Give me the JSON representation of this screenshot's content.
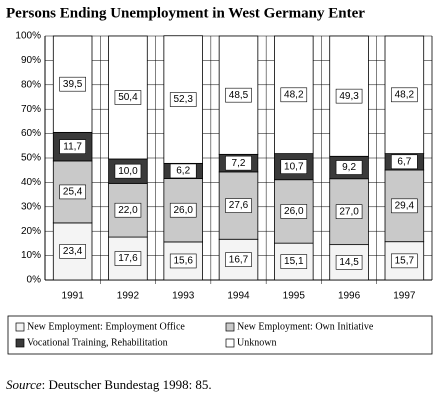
{
  "chart_data": {
    "type": "stacked-bar",
    "title": "Persons Ending Unemployment in West Germany Enter",
    "categories": [
      "1991",
      "1992",
      "1993",
      "1994",
      "1995",
      "1996",
      "1997"
    ],
    "series": [
      {
        "name": "New Employment: Employment Office",
        "color": "#f4f4f4",
        "values": [
          23.4,
          17.6,
          15.6,
          16.7,
          15.1,
          14.5,
          15.7
        ],
        "value_labels": [
          "23,4",
          "17,6",
          "15,6",
          "16,7",
          "15,1",
          "14,5",
          "15,7"
        ]
      },
      {
        "name": "New Employment: Own Initiative",
        "color": "#c9c9c9",
        "values": [
          25.4,
          22.0,
          26.0,
          27.6,
          26.0,
          27.0,
          29.4
        ],
        "value_labels": [
          "25,4",
          "22,0",
          "26,0",
          "27,6",
          "26,0",
          "27,0",
          "29,4"
        ]
      },
      {
        "name": "Vocational Training, Rehabilitation",
        "color": "#3a3a3a",
        "values": [
          11.7,
          10.0,
          6.2,
          7.2,
          10.7,
          9.2,
          6.7
        ],
        "value_labels": [
          "11,7",
          "10,0",
          "6,2",
          "7,2",
          "10,7",
          "9,2",
          "6,7"
        ]
      },
      {
        "name": "Unknown",
        "color": "#ffffff",
        "values": [
          39.5,
          50.4,
          52.3,
          48.5,
          48.2,
          49.3,
          48.2
        ],
        "value_labels": [
          "39,5",
          "50,4",
          "52,3",
          "48,5",
          "48,2",
          "49,3",
          "48,2"
        ]
      }
    ],
    "ylim": [
      0,
      100
    ],
    "yticks": [
      {
        "value": 0,
        "label": "0%"
      },
      {
        "value": 10,
        "label": "10%"
      },
      {
        "value": 20,
        "label": "20%"
      },
      {
        "value": 30,
        "label": "30%"
      },
      {
        "value": 40,
        "label": "40%"
      },
      {
        "value": 50,
        "label": "50%"
      },
      {
        "value": 60,
        "label": "60%"
      },
      {
        "value": 70,
        "label": "70%"
      },
      {
        "value": 80,
        "label": "80%"
      },
      {
        "value": 90,
        "label": "90%"
      },
      {
        "value": 100,
        "label": "100%"
      }
    ],
    "grid": true,
    "legend": "bottom",
    "source_label": "Source",
    "source_text": ": Deutscher Bundestag 1998: 85."
  }
}
